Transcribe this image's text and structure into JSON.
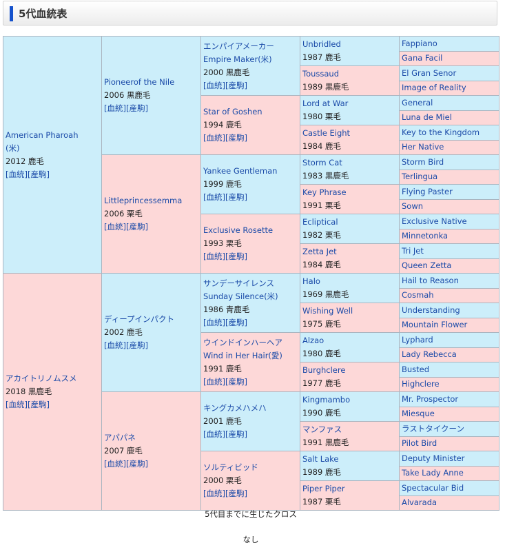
{
  "page_title": "5代血統表",
  "link_pedigree": "血統",
  "link_progeny": "産駒",
  "gen1": [
    {
      "name": "American Pharoah",
      "name2": "(米)",
      "info": "2012 鹿毛"
    },
    {
      "name": "アカイトリノムスメ",
      "name2": "",
      "info": "2018 黒鹿毛"
    }
  ],
  "gen2": [
    {
      "name": "Pioneerof the Nile",
      "info": "2006 黒鹿毛"
    },
    {
      "name": "Littleprincessemma",
      "info": "2006 栗毛"
    },
    {
      "name": "ディープインパクト",
      "info": "2002 鹿毛"
    },
    {
      "name": "アパパネ",
      "info": "2007 鹿毛"
    }
  ],
  "gen3": [
    {
      "name": "エンパイアメーカー",
      "name2": "Empire Maker(米)",
      "info": "2000 黒鹿毛"
    },
    {
      "name": "Star of Goshen",
      "name2": "",
      "info": "1994 鹿毛"
    },
    {
      "name": "Yankee Gentleman",
      "name2": "",
      "info": "1999 鹿毛"
    },
    {
      "name": "Exclusive Rosette",
      "name2": "",
      "info": "1993 栗毛"
    },
    {
      "name": "サンデーサイレンス",
      "name2": "Sunday Silence(米)",
      "info": "1986 青鹿毛"
    },
    {
      "name": "ウインドインハーヘア",
      "name2": "Wind in Her Hair(愛)",
      "info": "1991 鹿毛"
    },
    {
      "name": "キングカメハメハ",
      "name2": "",
      "info": "2001 鹿毛"
    },
    {
      "name": "ソルティビッド",
      "name2": "",
      "info": "2000 栗毛"
    }
  ],
  "gen4": [
    {
      "name": "Unbridled",
      "info": "1987 鹿毛"
    },
    {
      "name": "Toussaud",
      "info": "1989 黒鹿毛"
    },
    {
      "name": "Lord at War",
      "info": "1980 栗毛"
    },
    {
      "name": "Castle Eight",
      "info": "1984 鹿毛"
    },
    {
      "name": "Storm Cat",
      "info": "1983 黒鹿毛"
    },
    {
      "name": "Key Phrase",
      "info": "1991 栗毛"
    },
    {
      "name": "Ecliptical",
      "info": "1982 栗毛"
    },
    {
      "name": "Zetta Jet",
      "info": "1984 鹿毛"
    },
    {
      "name": "Halo",
      "info": "1969 黒鹿毛"
    },
    {
      "name": "Wishing Well",
      "info": "1975 鹿毛"
    },
    {
      "name": "Alzao",
      "info": "1980 鹿毛"
    },
    {
      "name": "Burghclere",
      "info": "1977 鹿毛"
    },
    {
      "name": "Kingmambo",
      "info": "1990 鹿毛"
    },
    {
      "name": "マンファス",
      "info": "1991 黒鹿毛"
    },
    {
      "name": "Salt Lake",
      "info": "1989 鹿毛"
    },
    {
      "name": "Piper Piper",
      "info": "1987 栗毛"
    }
  ],
  "gen5": [
    "Fappiano",
    "Gana Facil",
    "El Gran Senor",
    "Image of Reality",
    "General",
    "Luna de Miel",
    "Key to the Kingdom",
    "Her Native",
    "Storm Bird",
    "Terlingua",
    "Flying Paster",
    "Sown",
    "Exclusive Native",
    "Minnetonka",
    "Tri Jet",
    "Queen Zetta",
    "Hail to Reason",
    "Cosmah",
    "Understanding",
    "Mountain Flower",
    "Lyphard",
    "Lady Rebecca",
    "Busted",
    "Highclere",
    "Mr. Prospector",
    "Miesque",
    "ラストタイクーン",
    "Pilot Bird",
    "Deputy Minister",
    "Take Lady Anne",
    "Spectacular Bid",
    "Alvarada"
  ],
  "cross_title": "5代目までに生じたクロス",
  "cross_value": "なし"
}
